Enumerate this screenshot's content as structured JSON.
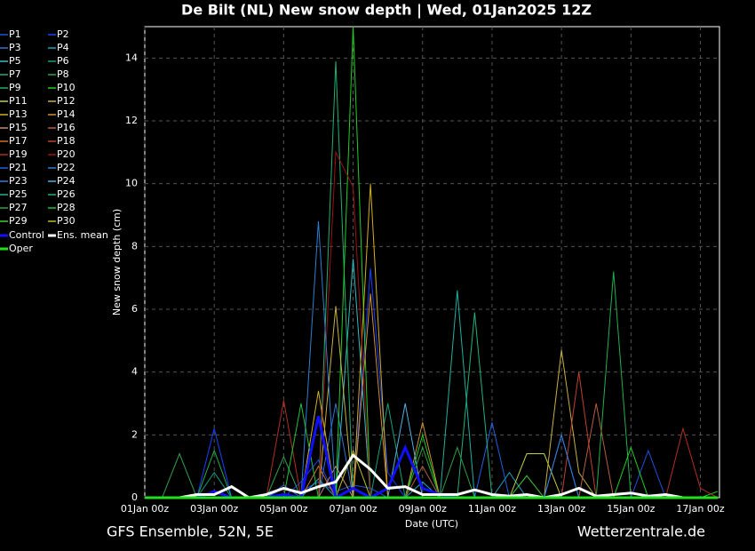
{
  "chart_data": {
    "type": "line",
    "title": "De Bilt  (NL)  New snow depth | Wed, 01Jan2025 12Z",
    "y_label": "New snow depth (cm)",
    "x_label": "Date (UTC)",
    "footer_left": "GFS Ensemble, 52N, 5E",
    "footer_right": "Wetterzentrale.de",
    "grid": true,
    "xlim": [
      0,
      16.55
    ],
    "ylim": [
      0,
      15
    ],
    "yticks": [
      0,
      2,
      4,
      6,
      8,
      10,
      12,
      14
    ],
    "xticks": [
      {
        "value": 0,
        "label": "01Jan 00z"
      },
      {
        "value": 2,
        "label": "03Jan 00z"
      },
      {
        "value": 4,
        "label": "05Jan 00z"
      },
      {
        "value": 6,
        "label": "07Jan 00z"
      },
      {
        "value": 8,
        "label": "09Jan 00z"
      },
      {
        "value": 10,
        "label": "11Jan 00z"
      },
      {
        "value": 12,
        "label": "13Jan 00z"
      },
      {
        "value": 14,
        "label": "15Jan 00z"
      },
      {
        "value": 16,
        "label": "17Jan 00z"
      }
    ],
    "x": [
      0,
      0.5,
      1,
      1.5,
      2,
      2.5,
      3,
      3.5,
      4,
      4.5,
      5,
      5.5,
      6,
      6.5,
      7,
      7.5,
      8,
      8.5,
      9,
      9.5,
      10,
      10.5,
      11,
      11.5,
      12,
      12.5,
      13,
      13.5,
      14,
      14.5,
      15,
      15.5,
      16,
      16.5
    ],
    "series": [
      {
        "name": "P1",
        "color": "#2050e0",
        "values": [
          0,
          0,
          0,
          0,
          0,
          0,
          0,
          0,
          0.3,
          0.2,
          0.5,
          0.2,
          0.4,
          0.3,
          0,
          0,
          0,
          0,
          0,
          0,
          0,
          0,
          0,
          0,
          0,
          0,
          0,
          0,
          0,
          1.5,
          0,
          0,
          0,
          0
        ]
      },
      {
        "name": "P2",
        "color": "#1a40ff",
        "values": [
          0,
          0,
          0,
          0,
          2.2,
          0,
          0,
          0,
          0,
          0.5,
          1.2,
          0,
          0,
          7.3,
          0.8,
          0,
          0,
          0,
          0,
          0,
          0,
          0,
          0,
          0,
          0,
          0,
          0,
          0,
          0,
          0,
          0,
          0,
          0,
          0
        ]
      },
      {
        "name": "P3",
        "color": "#3a6fd0",
        "values": [
          0,
          0,
          0,
          0,
          0,
          0,
          0,
          0,
          0.4,
          0,
          0,
          3,
          0,
          0,
          0,
          0,
          0,
          0,
          0,
          0,
          0,
          0,
          0,
          0,
          2,
          0,
          0,
          0,
          0,
          0,
          0,
          0,
          0,
          0
        ]
      },
      {
        "name": "P4",
        "color": "#20a0c0",
        "values": [
          0,
          0,
          0,
          0,
          0,
          0,
          0,
          0,
          0,
          0,
          0.6,
          0,
          0,
          0,
          0,
          0,
          0.5,
          0,
          0,
          0,
          0,
          0.8,
          0,
          0,
          0,
          0,
          0,
          0,
          0,
          0,
          0,
          0,
          0,
          0
        ]
      },
      {
        "name": "P5",
        "color": "#30c0c0",
        "values": [
          0,
          0,
          0,
          0,
          0,
          0,
          0,
          0,
          0,
          0,
          0,
          0,
          7.6,
          0,
          0,
          0,
          0,
          0,
          0,
          0,
          0,
          0,
          0,
          0,
          0,
          0,
          0,
          0,
          0,
          0,
          0,
          0,
          0,
          0
        ]
      },
      {
        "name": "P6",
        "color": "#10a080",
        "values": [
          0,
          0,
          0,
          0,
          0.8,
          0,
          0,
          0,
          0,
          0,
          0,
          0,
          0,
          0,
          3,
          0,
          0,
          0,
          0,
          0,
          0,
          0,
          0,
          0,
          0,
          0,
          0,
          0,
          0,
          0,
          0,
          0,
          0,
          0
        ]
      },
      {
        "name": "P7",
        "color": "#20b070",
        "values": [
          0,
          0,
          0,
          0,
          0,
          0,
          0,
          0,
          0,
          0,
          0,
          13.9,
          0,
          0,
          0,
          0,
          0,
          0,
          0,
          0,
          0,
          0,
          0,
          0,
          0,
          0,
          0,
          0,
          0,
          0,
          0,
          0,
          0,
          0
        ]
      },
      {
        "name": "P8",
        "color": "#30a050",
        "values": [
          0,
          0,
          1.4,
          0,
          0,
          0,
          0,
          0,
          1.3,
          0,
          0,
          0,
          0,
          0,
          0,
          0,
          0,
          0,
          0,
          0,
          0,
          0,
          0,
          0,
          0,
          0,
          0,
          0,
          0,
          0,
          0,
          0,
          0,
          0
        ]
      },
      {
        "name": "P9",
        "color": "#20b050",
        "values": [
          0,
          0,
          0,
          0,
          1.5,
          0,
          0,
          0,
          0,
          0,
          0,
          0,
          0,
          0,
          0,
          0,
          0,
          0,
          0,
          0,
          0,
          0,
          0,
          0,
          0,
          0,
          0,
          7.2,
          0,
          0,
          0,
          0,
          0,
          0
        ]
      },
      {
        "name": "P10",
        "color": "#20d020",
        "values": [
          0,
          0,
          0,
          0,
          0,
          0,
          0,
          0,
          0,
          0,
          0,
          0,
          15,
          0,
          0,
          0,
          2,
          0,
          0,
          0,
          0,
          0,
          0,
          0,
          0,
          0,
          0,
          0,
          1.6,
          0,
          0,
          0,
          0,
          0.2
        ]
      },
      {
        "name": "P11",
        "color": "#c0d040",
        "values": [
          0,
          0,
          0,
          0,
          0,
          0,
          0,
          0,
          0,
          0,
          0,
          0,
          0,
          0,
          0,
          0,
          0,
          0,
          0,
          0,
          0,
          0,
          1.4,
          1.4,
          0,
          0,
          0,
          0,
          0,
          0,
          0,
          0,
          0,
          0
        ]
      },
      {
        "name": "P12",
        "color": "#c8b040",
        "values": [
          0,
          0,
          0,
          0,
          0,
          0,
          0,
          0,
          0,
          0,
          0,
          6.1,
          0,
          0,
          0,
          0,
          0,
          0,
          0,
          0,
          0,
          0,
          0,
          0,
          4.7,
          0.8,
          0,
          0,
          0,
          0,
          0,
          0,
          0,
          0
        ]
      },
      {
        "name": "P13",
        "color": "#d0b020",
        "values": [
          0,
          0,
          0,
          0,
          0,
          0,
          0,
          0,
          0,
          0,
          3.4,
          0,
          0,
          10,
          0,
          0,
          0,
          0,
          0,
          0,
          0,
          0,
          0,
          0,
          0,
          0,
          0,
          0,
          0,
          0,
          0,
          0,
          0,
          0
        ]
      },
      {
        "name": "P14",
        "color": "#d09030",
        "values": [
          0,
          0,
          0,
          0,
          0,
          0,
          0,
          0,
          0,
          0,
          0,
          0,
          0,
          6.5,
          0,
          0,
          2.4,
          0,
          0,
          0,
          0,
          0,
          0,
          0,
          0,
          0,
          0,
          0,
          0,
          0,
          0,
          0,
          0,
          0
        ]
      },
      {
        "name": "P15",
        "color": "#c09070",
        "values": [
          0,
          0,
          0,
          0,
          0,
          0,
          0,
          0,
          0,
          0,
          0,
          1,
          0,
          0,
          0,
          0,
          0,
          0,
          0,
          0,
          0,
          0,
          0,
          0,
          0,
          0,
          0,
          0,
          0,
          0,
          0,
          0,
          0,
          0
        ]
      },
      {
        "name": "P16",
        "color": "#b06040",
        "values": [
          0,
          0,
          0,
          0,
          0,
          0,
          0,
          0,
          0,
          0,
          0,
          0,
          0,
          0,
          0,
          0,
          1,
          0,
          0,
          0,
          0,
          0,
          0,
          0,
          0,
          0,
          3,
          0,
          0,
          0,
          0,
          0,
          0,
          0
        ]
      },
      {
        "name": "P17",
        "color": "#d07020",
        "values": [
          0,
          0,
          0,
          0,
          0,
          0,
          0,
          0,
          0,
          0,
          1,
          0,
          0,
          0,
          0,
          0,
          0,
          0,
          0,
          0,
          0,
          0,
          0,
          0,
          0,
          0,
          0,
          0,
          0,
          0,
          0,
          0,
          0,
          0
        ]
      },
      {
        "name": "P18",
        "color": "#c04030",
        "values": [
          0,
          0,
          0,
          0,
          0,
          0,
          0,
          0,
          0,
          0,
          0,
          0,
          0,
          0,
          0,
          0,
          0,
          0,
          0,
          0,
          0,
          0,
          0,
          0,
          0,
          4,
          0,
          0,
          0,
          0,
          0,
          0,
          0,
          0
        ]
      },
      {
        "name": "P19",
        "color": "#b03020",
        "values": [
          0,
          0,
          0,
          0,
          0,
          0,
          0,
          0,
          3.1,
          0,
          0,
          0,
          0,
          0,
          0,
          0,
          0,
          0,
          0,
          0,
          0,
          0,
          0,
          0,
          0,
          0,
          0,
          0,
          0,
          0,
          0,
          2.2,
          0.3,
          0
        ]
      },
      {
        "name": "P20",
        "color": "#a01010",
        "values": [
          0,
          0,
          0,
          0,
          0,
          0,
          0,
          0,
          0,
          0,
          0,
          11,
          9.9,
          0,
          0,
          0,
          0,
          0,
          0,
          0,
          0,
          0,
          0,
          0,
          0,
          0,
          0,
          0,
          0,
          0,
          0,
          0,
          0,
          0
        ]
      },
      {
        "name": "P21",
        "color": "#1f5fe0",
        "values": [
          0,
          0,
          0,
          0,
          0,
          0,
          0,
          0,
          0,
          0,
          0,
          0,
          0,
          0,
          0,
          0,
          0,
          0,
          0,
          0,
          2.4,
          0,
          0,
          0,
          0,
          0,
          0,
          0,
          0,
          0,
          0,
          0,
          0,
          0
        ]
      },
      {
        "name": "P22",
        "color": "#2a80d0",
        "values": [
          0,
          0,
          0,
          0,
          0,
          0,
          0,
          0,
          0,
          0,
          8.8,
          0,
          0,
          0,
          0,
          0,
          0,
          0,
          0,
          0,
          0,
          0,
          0,
          0,
          0,
          0,
          0,
          0,
          0,
          0,
          0,
          0,
          0,
          0
        ]
      },
      {
        "name": "P23",
        "color": "#3080e0",
        "values": [
          0,
          0,
          0,
          0,
          0,
          0,
          0,
          0,
          0,
          0,
          0,
          0,
          0,
          0,
          0,
          0,
          0,
          0,
          0,
          0,
          0,
          0,
          0,
          0,
          2,
          0,
          0,
          0,
          0,
          0,
          0,
          0,
          0,
          0
        ]
      },
      {
        "name": "P24",
        "color": "#50b0e0",
        "values": [
          0,
          0,
          0,
          0,
          0,
          0,
          0,
          0,
          0,
          0,
          0,
          0,
          0,
          0,
          0,
          3,
          0,
          0,
          0,
          0,
          0,
          0,
          0,
          0,
          0,
          0,
          0,
          0,
          0,
          0,
          0,
          0,
          0,
          0
        ]
      },
      {
        "name": "P25",
        "color": "#20b0a0",
        "values": [
          0,
          0,
          0,
          0,
          0,
          0,
          0,
          0,
          0,
          0,
          0,
          0,
          0,
          0,
          0,
          0,
          0,
          0,
          6.6,
          0,
          0,
          0,
          0,
          0,
          0,
          0,
          0,
          0,
          0,
          0,
          0,
          0,
          0,
          0
        ]
      },
      {
        "name": "P26",
        "color": "#20b080",
        "values": [
          0,
          0,
          0,
          0,
          0,
          0,
          0,
          0,
          0,
          0,
          0,
          0,
          0,
          0,
          0,
          0,
          0,
          0,
          0,
          5.9,
          0,
          0,
          0,
          0,
          0,
          0,
          0,
          0,
          0,
          0,
          0,
          0,
          0,
          0
        ]
      },
      {
        "name": "P27",
        "color": "#30a040",
        "values": [
          0,
          0,
          0,
          0,
          0,
          0,
          0,
          0,
          0,
          0,
          0,
          0,
          0,
          0,
          0,
          0,
          1.6,
          0,
          1.6,
          0,
          0,
          0,
          0,
          0,
          0,
          0,
          0,
          0,
          0,
          0,
          0,
          0,
          0,
          0
        ]
      },
      {
        "name": "P28",
        "color": "#20c040",
        "values": [
          0,
          0,
          0,
          0,
          0,
          0,
          0,
          0,
          0,
          3,
          0,
          0,
          0,
          0,
          0,
          0,
          0,
          0,
          0,
          0,
          0,
          0,
          0,
          0,
          0,
          0,
          0,
          0,
          0,
          0,
          0,
          0,
          0,
          0
        ]
      },
      {
        "name": "P29",
        "color": "#40d030",
        "values": [
          0,
          0,
          0,
          0,
          0,
          0,
          0,
          0,
          0,
          0,
          0,
          0,
          0,
          0,
          0,
          0,
          0,
          0,
          0,
          0,
          0,
          0,
          0.7,
          0,
          0,
          0,
          0,
          0,
          0,
          0,
          0,
          0,
          0,
          0
        ]
      },
      {
        "name": "P30",
        "color": "#c0c020",
        "values": [
          0,
          0,
          0,
          0,
          0,
          0,
          0,
          0,
          0,
          0,
          0,
          0,
          1.5,
          0,
          0,
          0,
          0,
          0,
          0,
          0,
          0,
          0,
          0,
          0,
          0,
          0,
          0,
          0,
          0,
          0,
          0,
          0,
          0,
          0
        ]
      },
      {
        "name": "Control",
        "color": "#1010ff",
        "values": [
          0,
          0,
          0,
          0,
          0.2,
          0,
          0,
          0,
          0.1,
          0,
          2.6,
          0,
          0.3,
          0,
          0.3,
          1.6,
          0.3,
          0.1,
          0,
          0,
          0,
          0,
          0,
          0,
          0,
          0,
          0,
          0,
          0,
          0,
          0,
          0,
          0,
          0
        ]
      },
      {
        "name": "Ens. mean",
        "color": "#ffffff",
        "values": [
          0,
          0,
          0,
          0.1,
          0.1,
          0.35,
          0,
          0.1,
          0.3,
          0.15,
          0.35,
          0.5,
          1.35,
          0.9,
          0.3,
          0.35,
          0.1,
          0.1,
          0.1,
          0.25,
          0.1,
          0.05,
          0.1,
          0,
          0.1,
          0.3,
          0.05,
          0.1,
          0.15,
          0.05,
          0.1,
          0,
          0,
          0
        ]
      },
      {
        "name": "Oper",
        "color": "#20e020",
        "values": [
          0,
          0,
          0,
          0,
          0,
          0,
          0,
          0,
          0,
          0,
          0,
          0,
          0,
          0,
          0,
          0,
          0,
          0,
          0,
          0,
          0,
          0,
          0,
          0,
          0,
          0,
          0,
          0,
          0,
          0,
          0,
          0,
          0,
          0
        ]
      }
    ]
  }
}
